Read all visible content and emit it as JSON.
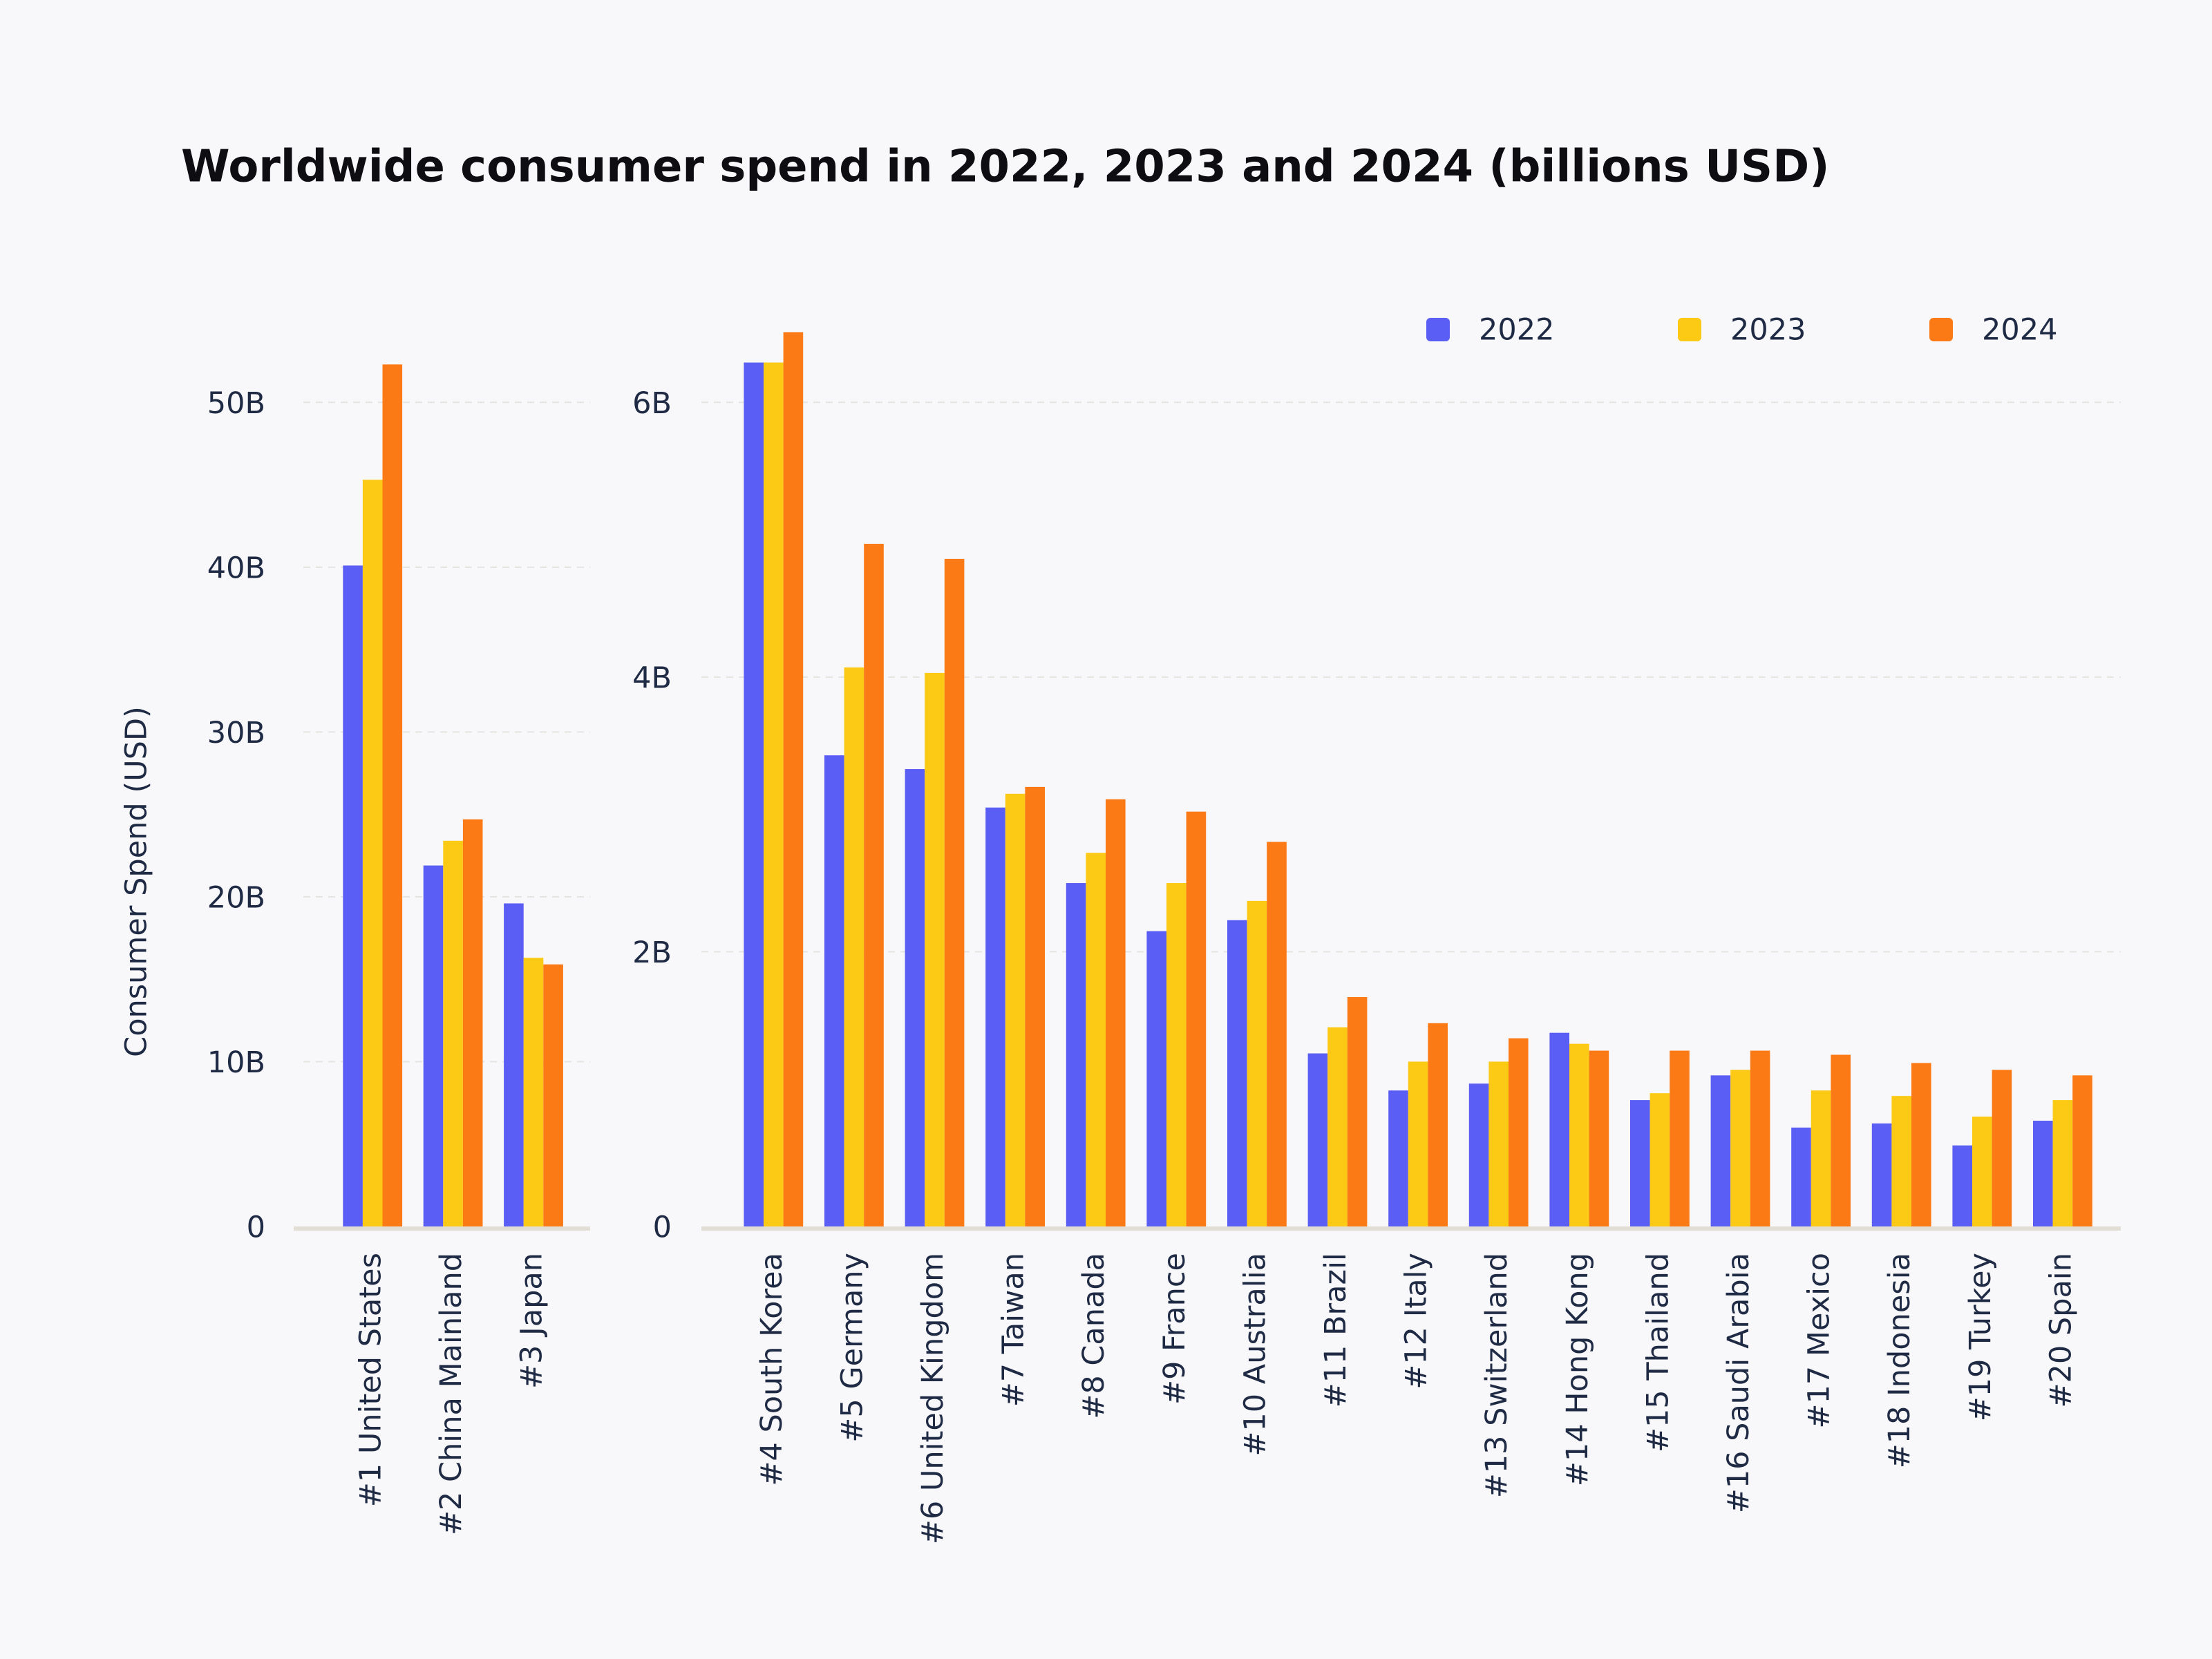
{
  "title": "Worldwide consumer spend in 2022, 2023 and 2024 (billions USD)",
  "chart_data": [
    {
      "type": "bar",
      "ylabel": "Consumer Spend (USD)",
      "categories": [
        "#1 United States",
        "#2 China Mainland",
        "#3 Japan"
      ],
      "series": [
        {
          "color": "#5b5ef4",
          "values": [
            40.1,
            21.9,
            19.6
          ]
        },
        {
          "color": "#fcc914",
          "values": [
            45.3,
            23.4,
            16.3
          ]
        },
        {
          "color": "#fb7a15",
          "values": [
            52.3,
            24.7,
            15.9
          ]
        }
      ],
      "ylim": [
        0,
        55
      ],
      "yticks": [
        0,
        {
          "value": 10,
          "label": "10B"
        },
        {
          "value": 20,
          "label": "20B"
        },
        {
          "value": 30,
          "label": "30B"
        },
        {
          "value": 40,
          "label": "40B"
        },
        {
          "value": 50,
          "label": "50B"
        }
      ],
      "grid": true
    },
    {
      "type": "bar",
      "categories": [
        "#4 South Korea",
        "#5 Germany",
        "#6 United Kingdom",
        "#7 Taiwan",
        "#8 Canada",
        "#9 France",
        "#10 Australia",
        "#11 Brazil",
        "#12 Italy",
        "#13 Switzerland",
        "#14 Hong Kong",
        "#15 Thailand",
        "#16 Saudi Arabia",
        "#17 Mexico",
        "#18 Indonesia",
        "#19 Turkey",
        "#20 Spain"
      ],
      "series": [
        {
          "name": "2022",
          "color": "#5b5ef4",
          "values": [
            6.29,
            3.43,
            3.33,
            3.05,
            2.5,
            2.15,
            2.23,
            1.26,
            0.99,
            1.04,
            1.41,
            0.92,
            1.1,
            0.72,
            0.75,
            0.59,
            0.77
          ]
        },
        {
          "name": "2023",
          "color": "#fcc914",
          "values": [
            6.29,
            4.07,
            4.03,
            3.15,
            2.72,
            2.5,
            2.37,
            1.45,
            1.2,
            1.2,
            1.33,
            0.97,
            1.14,
            0.99,
            0.95,
            0.8,
            0.92
          ]
        },
        {
          "name": "2024",
          "color": "#fb7a15",
          "values": [
            6.51,
            4.97,
            4.86,
            3.2,
            3.11,
            3.02,
            2.8,
            1.67,
            1.48,
            1.37,
            1.28,
            1.28,
            1.28,
            1.25,
            1.19,
            1.14,
            1.1
          ]
        }
      ],
      "ylim": [
        0,
        6.6
      ],
      "yticks": [
        0,
        {
          "value": 2,
          "label": "2B"
        },
        {
          "value": 4,
          "label": "4B"
        },
        {
          "value": 6,
          "label": "6B"
        }
      ],
      "grid": true,
      "legend": "top-right"
    }
  ]
}
